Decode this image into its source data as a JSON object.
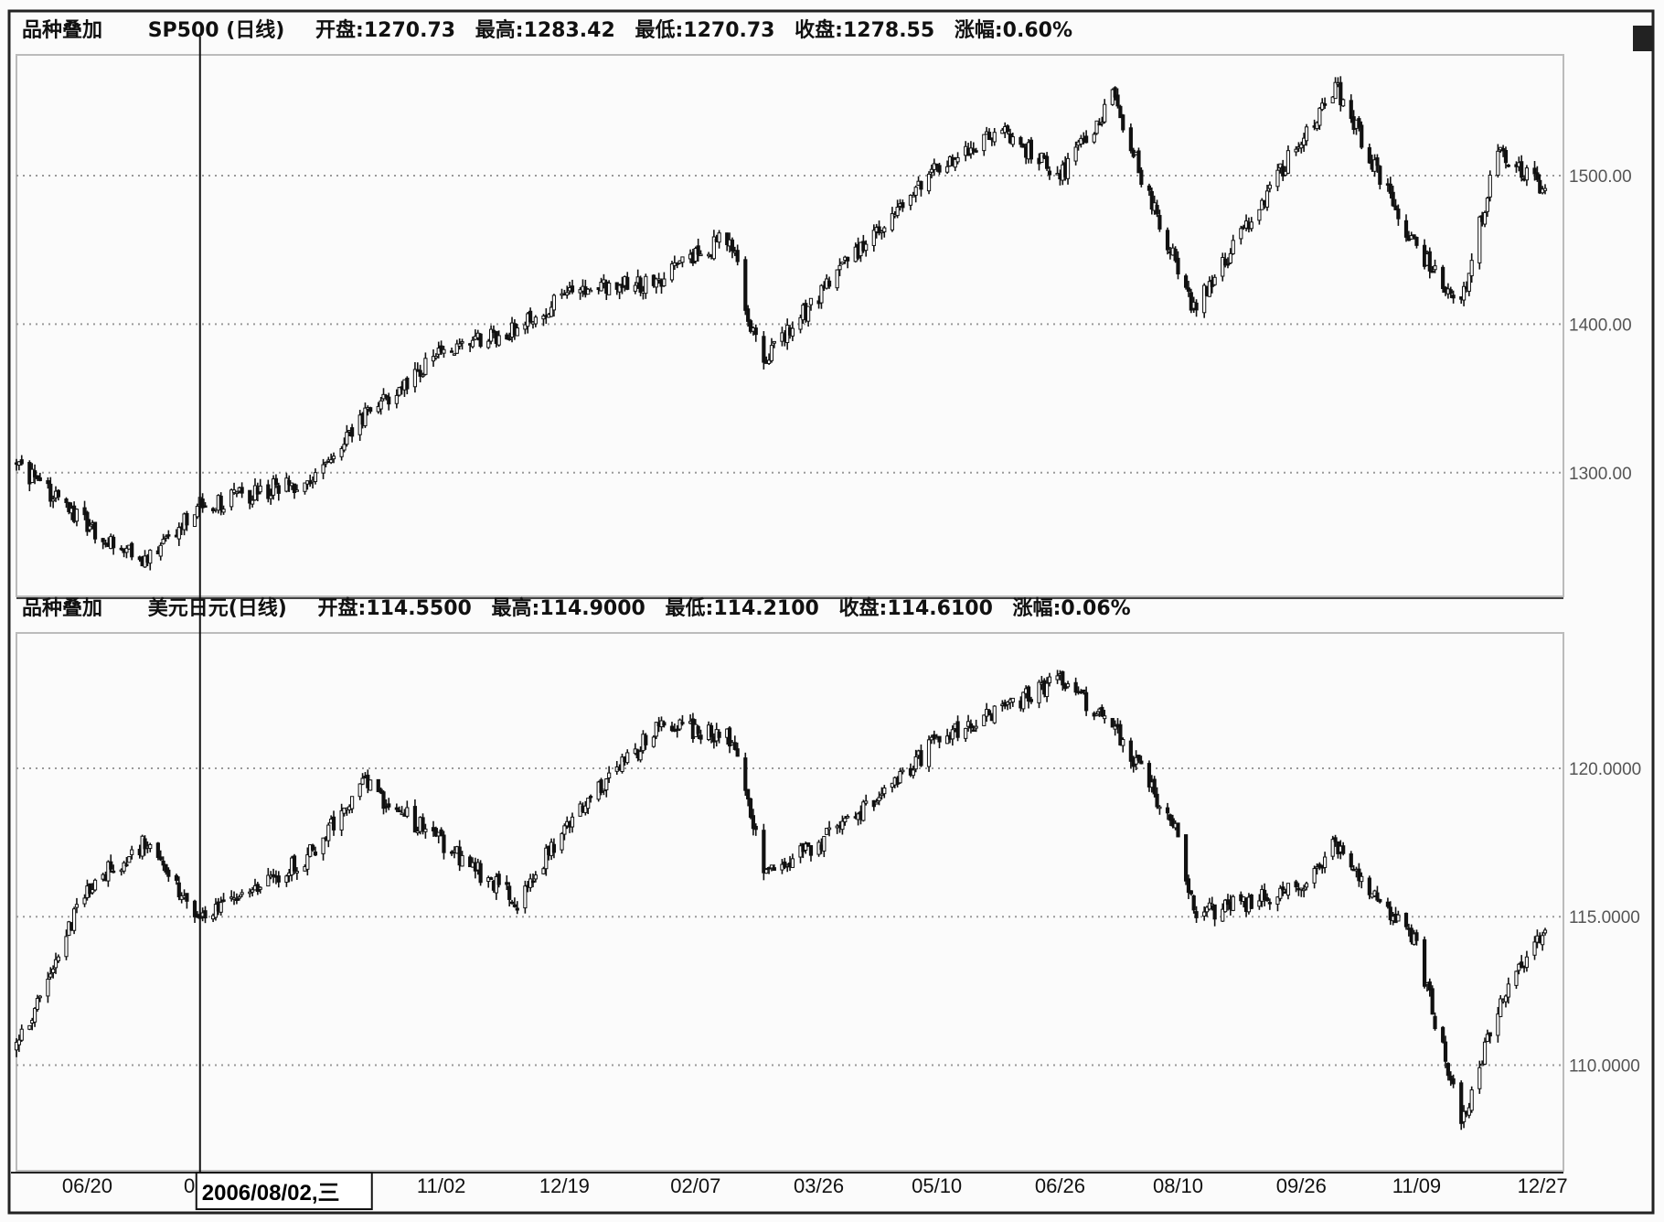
{
  "chart_data": [
    {
      "type": "candlestick",
      "header": {
        "overlay_label": "品种叠加",
        "symbol": "SP500 (日线)",
        "fields": [
          {
            "label": "开盘",
            "value": "1270.73"
          },
          {
            "label": "最高",
            "value": "1283.42"
          },
          {
            "label": "最低",
            "value": "1270.73"
          },
          {
            "label": "收盘",
            "value": "1278.55"
          },
          {
            "label": "涨幅",
            "value": "0.60%"
          }
        ]
      },
      "y_ticks": [
        {
          "value": 1500,
          "label": "1500.00"
        },
        {
          "value": 1400,
          "label": "1400.00"
        },
        {
          "value": 1300,
          "label": "1300.00"
        }
      ],
      "ylim": [
        1218,
        1580
      ],
      "grid": "horizontal-dotted",
      "series": [
        {
          "x": [
            "2006-05-24",
            "2006-06-20",
            "2006-07-12",
            "2006-08-02",
            "2006-09-12",
            "2006-10-03",
            "2006-11-02",
            "2006-12-01",
            "2006-12-19",
            "2007-01-25",
            "2007-02-20",
            "2007-02-27",
            "2007-03-05",
            "2007-03-26",
            "2007-04-25",
            "2007-05-10",
            "2007-06-04",
            "2007-06-26",
            "2007-07-16",
            "2007-08-02",
            "2007-08-10",
            "2007-08-16",
            "2007-09-26",
            "2007-10-09",
            "2007-11-09",
            "2007-11-26",
            "2007-12-10",
            "2007-12-27"
          ],
          "values": [
            1305,
            1265,
            1240,
            1278,
            1295,
            1336,
            1380,
            1398,
            1420,
            1430,
            1460,
            1406,
            1375,
            1420,
            1480,
            1505,
            1530,
            1500,
            1552,
            1472,
            1440,
            1410,
            1525,
            1560,
            1450,
            1415,
            1518,
            1490
          ]
        }
      ]
    },
    {
      "type": "candlestick",
      "header": {
        "overlay_label": "品种叠加",
        "symbol": "美元日元(日线)",
        "fields": [
          {
            "label": "开盘",
            "value": "114.5500"
          },
          {
            "label": "最高",
            "value": "114.9000"
          },
          {
            "label": "最低",
            "value": "114.2100"
          },
          {
            "label": "收盘",
            "value": "114.6100"
          },
          {
            "label": "涨幅",
            "value": "0.06%"
          }
        ]
      },
      "y_ticks": [
        {
          "value": 120,
          "label": "120.0000"
        },
        {
          "value": 115,
          "label": "115.0000"
        },
        {
          "value": 110,
          "label": "110.0000"
        }
      ],
      "ylim": [
        106.5,
        124.5
      ],
      "grid": "horizontal-dotted",
      "series": [
        {
          "x": [
            "2006-05-24",
            "2006-06-20",
            "2006-07-12",
            "2006-08-02",
            "2006-09-12",
            "2006-10-03",
            "2006-11-02",
            "2006-12-01",
            "2006-12-19",
            "2007-01-25",
            "2007-02-20",
            "2007-02-27",
            "2007-03-05",
            "2007-03-26",
            "2007-04-25",
            "2007-05-10",
            "2007-06-04",
            "2007-06-26",
            "2007-07-16",
            "2007-08-02",
            "2007-08-10",
            "2007-08-16",
            "2007-09-26",
            "2007-10-09",
            "2007-11-09",
            "2007-11-26",
            "2007-12-10",
            "2007-12-27"
          ],
          "values": [
            110.5,
            116.0,
            117.5,
            115.0,
            117.0,
            119.5,
            117.5,
            115.5,
            118.0,
            121.5,
            121.0,
            119.0,
            116.5,
            117.5,
            119.5,
            121.0,
            122.0,
            123.0,
            121.5,
            119.0,
            118.0,
            115.0,
            116.0,
            117.5,
            114.0,
            108.0,
            112.0,
            114.5
          ]
        }
      ]
    }
  ],
  "x_axis": {
    "ticks": [
      {
        "label": "06/20",
        "x": "2006-06-20"
      },
      {
        "label": "08/xx",
        "x": "2006-08-05"
      },
      {
        "label": "11/02",
        "x": "2006-11-02"
      },
      {
        "label": "12/19",
        "x": "2006-12-19"
      },
      {
        "label": "02/07",
        "x": "2007-02-07"
      },
      {
        "label": "03/26",
        "x": "2007-03-26"
      },
      {
        "label": "05/10",
        "x": "2007-05-10"
      },
      {
        "label": "06/26",
        "x": "2007-06-26"
      },
      {
        "label": "08/10",
        "x": "2007-08-10"
      },
      {
        "label": "09/26",
        "x": "2007-09-26"
      },
      {
        "label": "11/09",
        "x": "2007-11-09"
      },
      {
        "label": "12/27",
        "x": "2007-12-27"
      }
    ],
    "cursor_date": "2006/08/02,三",
    "cursor_x": "2006-08-02"
  }
}
